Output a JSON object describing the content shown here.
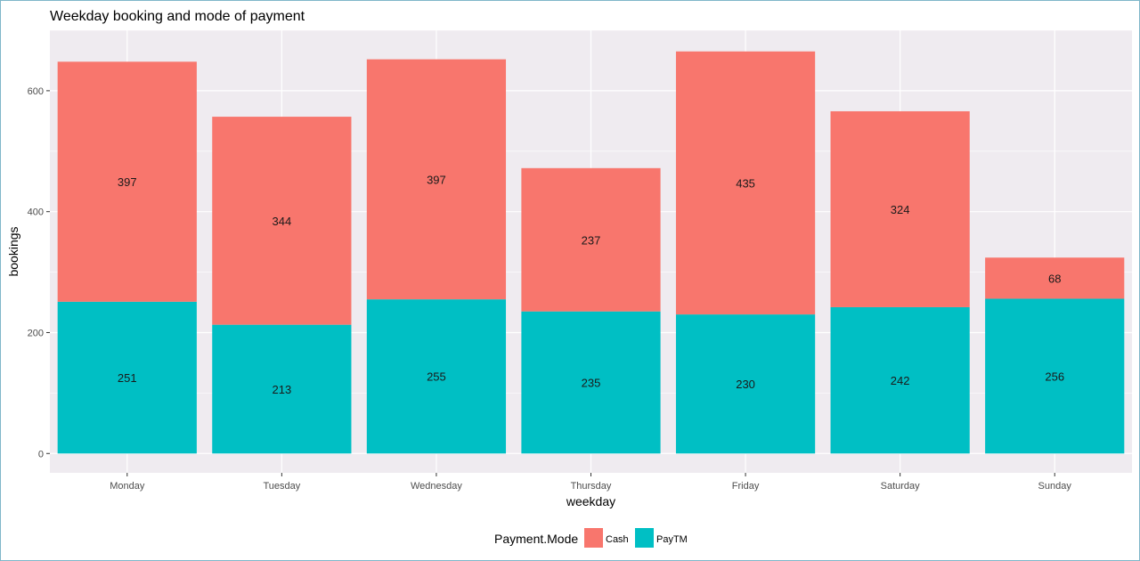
{
  "chart_data": {
    "type": "bar",
    "stacked": true,
    "title": "Weekday booking and mode of payment",
    "xlabel": "weekday",
    "ylabel": "bookings",
    "categories": [
      "Monday",
      "Tuesday",
      "Wednesday",
      "Thursday",
      "Friday",
      "Saturday",
      "Sunday"
    ],
    "series": [
      {
        "name": "PayTM",
        "color": "#00BFC4",
        "values": [
          251,
          213,
          255,
          235,
          230,
          242,
          256
        ]
      },
      {
        "name": "Cash",
        "color": "#F8766D",
        "values": [
          397,
          344,
          397,
          237,
          435,
          324,
          68
        ]
      }
    ],
    "ylim": [
      -32,
      700
    ],
    "y_ticks": [
      0,
      200,
      400,
      600
    ],
    "y_tick_labels": [
      "0",
      "200",
      "400",
      "600"
    ],
    "grid": true,
    "legend": {
      "title": "Payment.Mode",
      "position": "bottom",
      "entries": [
        "Cash",
        "PayTM"
      ]
    },
    "panel_background": "#EFEBF0"
  }
}
